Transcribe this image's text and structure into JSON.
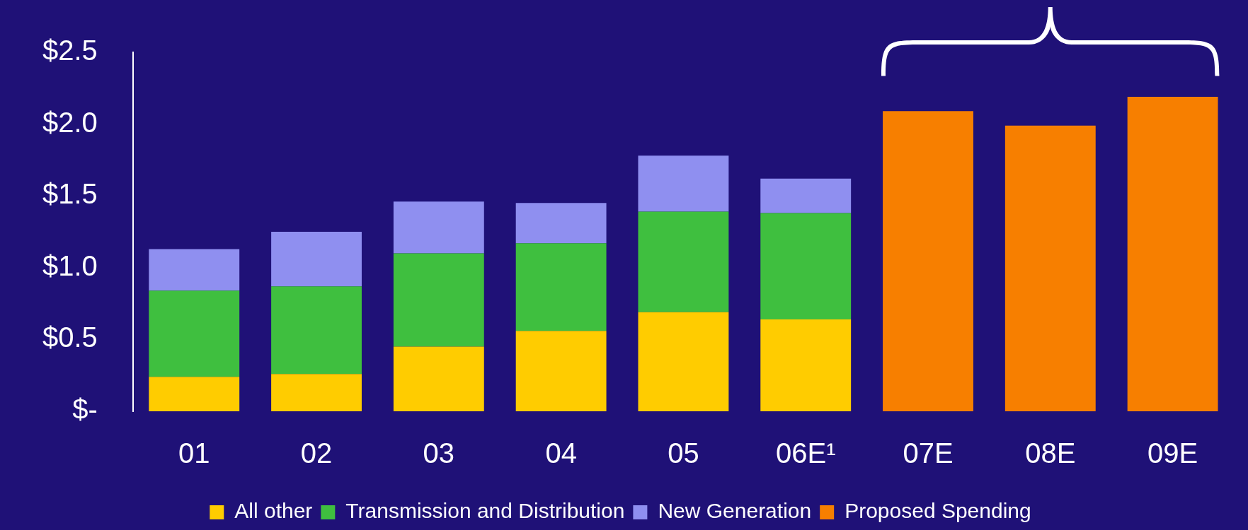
{
  "chart_data": {
    "type": "bar",
    "stacked": true,
    "categories": [
      "01",
      "02",
      "03",
      "04",
      "05",
      "06E¹",
      "07E",
      "08E",
      "09E"
    ],
    "series": [
      {
        "name": "All other",
        "color": "#ffcc00",
        "values": [
          0.24,
          0.26,
          0.45,
          0.56,
          0.69,
          0.64,
          null,
          null,
          null
        ]
      },
      {
        "name": "Transmission and Distribution",
        "color": "#3fbf3f",
        "values": [
          0.6,
          0.61,
          0.65,
          0.61,
          0.7,
          0.74,
          null,
          null,
          null
        ]
      },
      {
        "name": "New Generation",
        "color": "#8f8ff0",
        "values": [
          0.29,
          0.38,
          0.36,
          0.28,
          0.39,
          0.24,
          null,
          null,
          null
        ]
      },
      {
        "name": "Proposed Spending",
        "color": "#f77f00",
        "values": [
          null,
          null,
          null,
          null,
          null,
          null,
          2.09,
          1.99,
          2.19
        ]
      }
    ],
    "ylim": [
      0,
      2.5
    ],
    "yticks": [
      {
        "value": 0,
        "label": "$-"
      },
      {
        "value": 0.5,
        "label": "$0.5"
      },
      {
        "value": 1,
        "label": "$1.0"
      },
      {
        "value": 1.5,
        "label": "$1.5"
      },
      {
        "value": 2,
        "label": "$2.0"
      },
      {
        "value": 2.5,
        "label": "$2.5"
      }
    ],
    "grid": false,
    "legend": "bottom"
  }
}
